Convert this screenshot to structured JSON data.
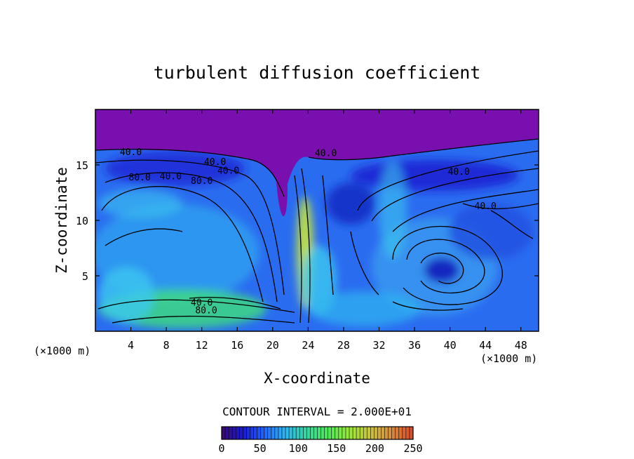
{
  "chart_data": {
    "type": "heatmap",
    "title": "turbulent diffusion coefficient",
    "xlabel": "X-coordinate",
    "ylabel": "Z-coordinate",
    "x_unit": "(×1000 m)",
    "y_unit": "(×1000 m)",
    "xlim": [
      0,
      50
    ],
    "ylim": [
      0,
      20
    ],
    "x_ticks": [
      4,
      8,
      12,
      16,
      20,
      24,
      28,
      32,
      36,
      40,
      44,
      48
    ],
    "y_ticks": [
      5,
      10,
      15
    ],
    "contour_interval_text": "CONTOUR INTERVAL = 2.000E+01",
    "contour_labels": [
      {
        "text": "40.0",
        "x": 4,
        "y": 15.9
      },
      {
        "text": "40.0",
        "x": 13.5,
        "y": 15.0
      },
      {
        "text": "80.0",
        "x": 5,
        "y": 13.6
      },
      {
        "text": "40.0",
        "x": 8.5,
        "y": 13.7
      },
      {
        "text": "80.0",
        "x": 12,
        "y": 13.3
      },
      {
        "text": "40.0",
        "x": 15,
        "y": 14.2
      },
      {
        "text": "40.0",
        "x": 26,
        "y": 15.8
      },
      {
        "text": "40.0",
        "x": 41,
        "y": 14.1
      },
      {
        "text": "40.0",
        "x": 44,
        "y": 11.0
      },
      {
        "text": "80.0",
        "x": 12.5,
        "y": 1.6
      },
      {
        "text": "40.0",
        "x": 12,
        "y": 2.3
      }
    ],
    "colorbar": {
      "min": 0,
      "max": 250,
      "ticks": [
        0,
        50,
        100,
        150,
        200,
        250
      ],
      "colormap": [
        "#3a0a6e",
        "#1a1ad0",
        "#1f66ff",
        "#2fb6f0",
        "#35d6a0",
        "#4ce85a",
        "#9ae83a",
        "#c9c23a",
        "#d88a3a",
        "#d84a2a"
      ]
    },
    "colors": {
      "upper_layer": "#7a0fb0",
      "background": "#2a6cf0",
      "low_values": "#1428c0",
      "cyan": "#3cc8f0",
      "green": "#3ee07a",
      "yellow": "#c8e83a"
    },
    "grid": false
  }
}
